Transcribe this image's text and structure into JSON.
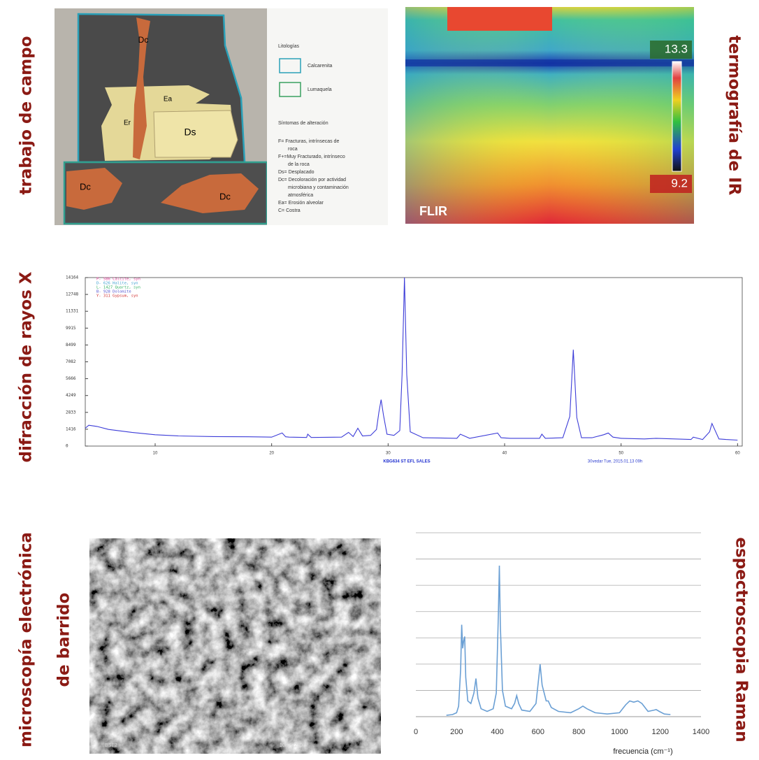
{
  "labels": {
    "field": "trabajo de campo",
    "thermo": "termografía de IR",
    "xrd": "difracción de rayos X",
    "sem_1": "microscopía electrónica",
    "sem_2": "de barrido",
    "raman": "espectroscopia Raman"
  },
  "field_map": {
    "tags": [
      "Dc",
      "Ea",
      "Er",
      "Ds",
      "Dc",
      "Dc"
    ],
    "legend_title": "Litologías",
    "lithologies": [
      "Calcarenita",
      "Lumaquela"
    ],
    "symptoms_title": "Síntomas de alteración",
    "symptoms": [
      "F= Fracturas, intrínsecas de",
      "roca",
      "F+=Muy Fracturado, intrínseco",
      "de la roca",
      "Ds= Desplacado",
      "Dc= Decoloración por actividad",
      "microbiana y contaminación",
      "atmosférica",
      "Ea= Erosión alveolar",
      "C= Costra"
    ]
  },
  "thermal": {
    "max_label": "13.3",
    "min_label": "9.2",
    "brand": "FLIR"
  },
  "sem": {
    "caption_left": "BSE2",
    "caption_right": "10kV x250"
  },
  "chart_data": [
    {
      "type": "line",
      "title": "KBG634 ST EFL SALES",
      "footer": "30vedar Tue, 2015.01.13 09h",
      "color": "#3c3cd8",
      "phase_legend": [
        {
          "text": "P- 586 Calcite, syn",
          "color": "#e0409a"
        },
        {
          "text": "D- 626 Halite, syn",
          "color": "#40a0d0"
        },
        {
          "text": "L- 1427 Quartz, syn",
          "color": "#30b060"
        },
        {
          "text": "B- 928 Dolomite",
          "color": "#5050d0"
        },
        {
          "text": "Y- 311 Gypsum, syn",
          "color": "#d03030"
        }
      ],
      "x": [
        4,
        4.3,
        5,
        6,
        8,
        10,
        12,
        15,
        18,
        20,
        20.9,
        21.2,
        21.5,
        23,
        23.1,
        23.4,
        26,
        26.6,
        27,
        27.4,
        27.8,
        28.5,
        29,
        29.2,
        29.4,
        29.6,
        29.9,
        30.5,
        31,
        31.2,
        31.4,
        31.6,
        31.9,
        33,
        35.9,
        36.2,
        37,
        39.4,
        39.7,
        40.5,
        43,
        43.2,
        43.5,
        45,
        45.6,
        45.9,
        46.2,
        46.6,
        47.5,
        48.5,
        48.9,
        49.3,
        50,
        52,
        53,
        56,
        56.2,
        57,
        57.6,
        57.8,
        58.4,
        59,
        60
      ],
      "values": [
        1500,
        1750,
        1650,
        1400,
        1150,
        950,
        850,
        800,
        780,
        750,
        1100,
        780,
        750,
        720,
        1000,
        720,
        750,
        1150,
        800,
        1500,
        850,
        900,
        1400,
        2800,
        3900,
        2600,
        1000,
        900,
        1300,
        6000,
        14164,
        6000,
        1200,
        700,
        650,
        1000,
        650,
        1100,
        700,
        650,
        650,
        1000,
        650,
        700,
        2500,
        8100,
        2400,
        700,
        700,
        950,
        1100,
        750,
        650,
        600,
        650,
        550,
        750,
        550,
        1200,
        1900,
        600,
        550,
        500
      ],
      "xlim": [
        4,
        60.4
      ],
      "xticks": [
        10,
        20,
        30,
        40,
        50,
        60
      ],
      "ylim": [
        0,
        14164
      ],
      "yticks": [
        0,
        1416,
        2833,
        4249,
        5666,
        7082,
        8499,
        9915,
        11331,
        12748,
        14164
      ],
      "grid": false,
      "ytick_labels": true
    },
    {
      "type": "line",
      "xlabel": "frecuencia (cm⁻¹)",
      "color": "#6a9fd4",
      "x": [
        150,
        180,
        200,
        210,
        220,
        225,
        230,
        235,
        240,
        245,
        255,
        270,
        285,
        295,
        305,
        320,
        350,
        380,
        395,
        405,
        410,
        415,
        425,
        440,
        470,
        485,
        495,
        505,
        520,
        560,
        590,
        605,
        610,
        620,
        640,
        650,
        665,
        700,
        760,
        800,
        820,
        840,
        880,
        940,
        1000,
        1030,
        1050,
        1070,
        1090,
        1110,
        1140,
        1170,
        1180,
        1195,
        1220,
        1250
      ],
      "values": [
        0.05,
        0.08,
        0.15,
        0.4,
        1.8,
        3.5,
        2.6,
        2.9,
        3.05,
        1.5,
        0.6,
        0.5,
        0.9,
        1.45,
        0.7,
        0.3,
        0.2,
        0.3,
        0.9,
        3.8,
        5.75,
        3.5,
        1.0,
        0.4,
        0.3,
        0.5,
        0.8,
        0.5,
        0.25,
        0.2,
        0.5,
        1.6,
        2.0,
        1.2,
        0.6,
        0.6,
        0.35,
        0.2,
        0.15,
        0.3,
        0.4,
        0.3,
        0.15,
        0.1,
        0.15,
        0.45,
        0.6,
        0.55,
        0.6,
        0.5,
        0.2,
        0.25,
        0.27,
        0.2,
        0.1,
        0.08
      ],
      "xlim": [
        0,
        1400
      ],
      "xticks": [
        0,
        200,
        400,
        600,
        800,
        1000,
        1200,
        1400
      ],
      "ylim": [
        0,
        7
      ],
      "yticks": [
        1,
        2,
        3,
        4,
        5,
        6,
        7
      ],
      "grid": true,
      "ytick_labels": false
    }
  ]
}
